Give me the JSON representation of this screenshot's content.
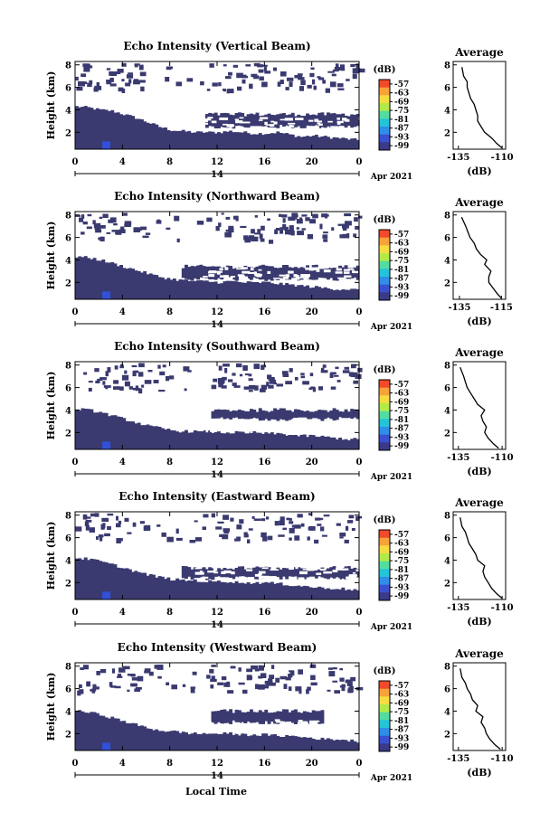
{
  "colorbar": {
    "unit": "(dB)",
    "labels": [
      "-57",
      "-63",
      "-69",
      "-75",
      "-81",
      "-87",
      "-93",
      "-99"
    ],
    "colors": [
      "#f24a2a",
      "#f8a23a",
      "#f5dc40",
      "#b2ea4a",
      "#52dca0",
      "#24c4d8",
      "#2e8ee8",
      "#3a50d0",
      "#3a3a88"
    ]
  },
  "panel_base_color": "#3a3a70",
  "panel_deep_color": "#3250d8",
  "shared": {
    "date_label": "14",
    "month_label": "Apr 2021",
    "xlabel": "Local Time",
    "ylabel": "Height (km)",
    "avg_title": "Average",
    "avg_xlabel": "(dB)"
  },
  "chart_data": [
    {
      "type": "heatmap",
      "title": "Echo Intensity (Vertical Beam)",
      "xlabel": "Local Time",
      "ylabel": "Height (km)",
      "x_ticks": [
        "0",
        "4",
        "8",
        "12",
        "16",
        "20",
        "0"
      ],
      "y_ticks": [
        "2",
        "4",
        "6",
        "8"
      ],
      "xlim": [
        0,
        24
      ],
      "ylim": [
        0.5,
        8.3
      ],
      "base_height": [
        4.3,
        4.2,
        4.0,
        3.9,
        3.6,
        3.3,
        2.9,
        2.5,
        2.2,
        2.1,
        2.0,
        2.0,
        2.0,
        2.1,
        2.0,
        1.9,
        1.9,
        2.0,
        1.8,
        1.6,
        1.7,
        1.6,
        1.5,
        1.4,
        1.3
      ],
      "upper_layer": {
        "x": [
          11,
          24
        ],
        "bottom": 2.5,
        "top": 3.6
      },
      "average": {
        "type": "line",
        "title": "Average",
        "xlabel": "(dB)",
        "x_ticks": [
          "-135",
          "-110"
        ],
        "y_ticks": [
          "2",
          "4",
          "6",
          "8"
        ],
        "x": [
          -110,
          -113,
          -116,
          -120,
          -122,
          -124,
          -124,
          -125,
          -126,
          -128,
          -129,
          -130,
          -130,
          -132,
          -133
        ],
        "y": [
          0.6,
          1.0,
          1.5,
          2.0,
          2.5,
          3.0,
          3.5,
          4.0,
          4.5,
          5.0,
          5.5,
          6.0,
          6.5,
          7.0,
          7.8
        ]
      }
    },
    {
      "type": "heatmap",
      "title": "Echo Intensity (Northward Beam)",
      "xlabel": "Local Time",
      "ylabel": "Height (km)",
      "x_ticks": [
        "0",
        "4",
        "8",
        "12",
        "16",
        "20",
        "0"
      ],
      "y_ticks": [
        "2",
        "4",
        "6",
        "8"
      ],
      "xlim": [
        0,
        24
      ],
      "ylim": [
        0.5,
        8.3
      ],
      "base_height": [
        4.3,
        4.2,
        4.0,
        3.7,
        3.4,
        3.1,
        2.8,
        2.5,
        2.3,
        2.2,
        2.1,
        2.1,
        2.0,
        2.1,
        2.0,
        2.0,
        2.0,
        1.9,
        1.8,
        1.7,
        1.6,
        1.5,
        1.4,
        1.4,
        1.3
      ],
      "upper_layer": {
        "x": [
          9,
          24
        ],
        "bottom": 2.3,
        "top": 3.4
      },
      "average": {
        "type": "line",
        "title": "Average",
        "xlabel": "(dB)",
        "x_ticks": [
          "-135",
          "-115"
        ],
        "y_ticks": [
          "2",
          "4",
          "6",
          "8"
        ],
        "x": [
          -115,
          -117,
          -119,
          -121,
          -121,
          -120,
          -123,
          -122,
          -125,
          -127,
          -128,
          -130,
          -131,
          -132,
          -134
        ],
        "y": [
          0.6,
          1.0,
          1.5,
          2.0,
          2.5,
          3.0,
          3.6,
          4.0,
          4.5,
          5.0,
          5.5,
          6.0,
          6.5,
          7.0,
          7.8
        ]
      }
    },
    {
      "type": "heatmap",
      "title": "Echo Intensity (Southward Beam)",
      "xlabel": "Local Time",
      "ylabel": "Height (km)",
      "x_ticks": [
        "0",
        "4",
        "8",
        "12",
        "16",
        "20",
        "0"
      ],
      "y_ticks": [
        "2",
        "4",
        "6",
        "8"
      ],
      "xlim": [
        0,
        24
      ],
      "ylim": [
        0.5,
        8.3
      ],
      "base_height": [
        4.1,
        4.0,
        3.8,
        3.5,
        3.2,
        2.9,
        2.6,
        2.4,
        2.2,
        2.1,
        2.1,
        2.1,
        2.0,
        2.0,
        2.0,
        2.0,
        1.9,
        1.9,
        1.8,
        1.7,
        1.7,
        1.6,
        1.5,
        1.4,
        1.4
      ],
      "upper_layer": {
        "x": [
          11.5,
          24
        ],
        "bottom": 3.2,
        "top": 4.0
      },
      "average": {
        "type": "line",
        "title": "Average",
        "xlabel": "(dB)",
        "x_ticks": [
          "-135",
          "-110"
        ],
        "y_ticks": [
          "2",
          "4",
          "6",
          "8"
        ],
        "x": [
          -112,
          -115,
          -118,
          -120,
          -119,
          -121,
          -122,
          -120,
          -124,
          -126,
          -128,
          -130,
          -131,
          -132,
          -134
        ],
        "y": [
          0.6,
          1.0,
          1.5,
          2.0,
          2.5,
          3.0,
          3.5,
          4.0,
          4.5,
          5.0,
          5.5,
          6.0,
          6.5,
          7.0,
          7.8
        ]
      }
    },
    {
      "type": "heatmap",
      "title": "Echo Intensity (Eastward Beam)",
      "xlabel": "Local Time",
      "ylabel": "Height (km)",
      "x_ticks": [
        "0",
        "4",
        "8",
        "12",
        "16",
        "20",
        "0"
      ],
      "y_ticks": [
        "2",
        "4",
        "6",
        "8"
      ],
      "xlim": [
        0,
        24
      ],
      "ylim": [
        0.5,
        8.3
      ],
      "base_height": [
        4.2,
        4.1,
        3.9,
        3.6,
        3.3,
        3.0,
        2.7,
        2.5,
        2.3,
        2.2,
        2.2,
        2.1,
        2.1,
        2.1,
        2.0,
        2.0,
        2.0,
        1.9,
        1.8,
        1.7,
        1.6,
        1.5,
        1.5,
        1.4,
        1.3
      ],
      "upper_layer": {
        "x": [
          9,
          24
        ],
        "bottom": 2.4,
        "top": 3.3
      },
      "average": {
        "type": "line",
        "title": "Average",
        "xlabel": "(dB)",
        "x_ticks": [
          "-135",
          "-110"
        ],
        "y_ticks": [
          "2",
          "4",
          "6",
          "8"
        ],
        "x": [
          -110,
          -113,
          -116,
          -118,
          -120,
          -121,
          -120,
          -124,
          -125,
          -127,
          -129,
          -130,
          -131,
          -133,
          -134
        ],
        "y": [
          0.6,
          1.0,
          1.5,
          2.0,
          2.5,
          3.0,
          3.5,
          4.0,
          4.5,
          5.0,
          5.5,
          6.0,
          6.5,
          7.0,
          7.8
        ]
      }
    },
    {
      "type": "heatmap",
      "title": "Echo Intensity (Westward Beam)",
      "xlabel": "Local Time",
      "ylabel": "Height (km)",
      "x_ticks": [
        "0",
        "4",
        "8",
        "12",
        "16",
        "20",
        "0"
      ],
      "y_ticks": [
        "2",
        "4",
        "6",
        "8"
      ],
      "xlim": [
        0,
        24
      ],
      "ylim": [
        0.5,
        8.3
      ],
      "base_height": [
        4.0,
        3.9,
        3.7,
        3.4,
        3.1,
        2.8,
        2.5,
        2.3,
        2.2,
        2.1,
        2.0,
        2.0,
        2.0,
        2.0,
        1.9,
        1.9,
        1.9,
        1.8,
        1.8,
        1.7,
        1.6,
        1.5,
        1.5,
        1.4,
        1.3
      ],
      "upper_layer": {
        "x": [
          11.5,
          21
        ],
        "bottom": 3.0,
        "top": 4.0
      },
      "average": {
        "type": "line",
        "title": "Average",
        "xlabel": "(dB)",
        "x_ticks": [
          "-135",
          "-110"
        ],
        "y_ticks": [
          "2",
          "4",
          "6",
          "8"
        ],
        "x": [
          -111,
          -114,
          -117,
          -119,
          -120,
          -122,
          -121,
          -125,
          -124,
          -127,
          -128,
          -130,
          -131,
          -133,
          -134
        ],
        "y": [
          0.6,
          1.0,
          1.5,
          2.0,
          2.5,
          3.0,
          3.5,
          4.0,
          4.5,
          5.0,
          5.5,
          6.0,
          6.5,
          7.0,
          7.8
        ]
      }
    }
  ]
}
